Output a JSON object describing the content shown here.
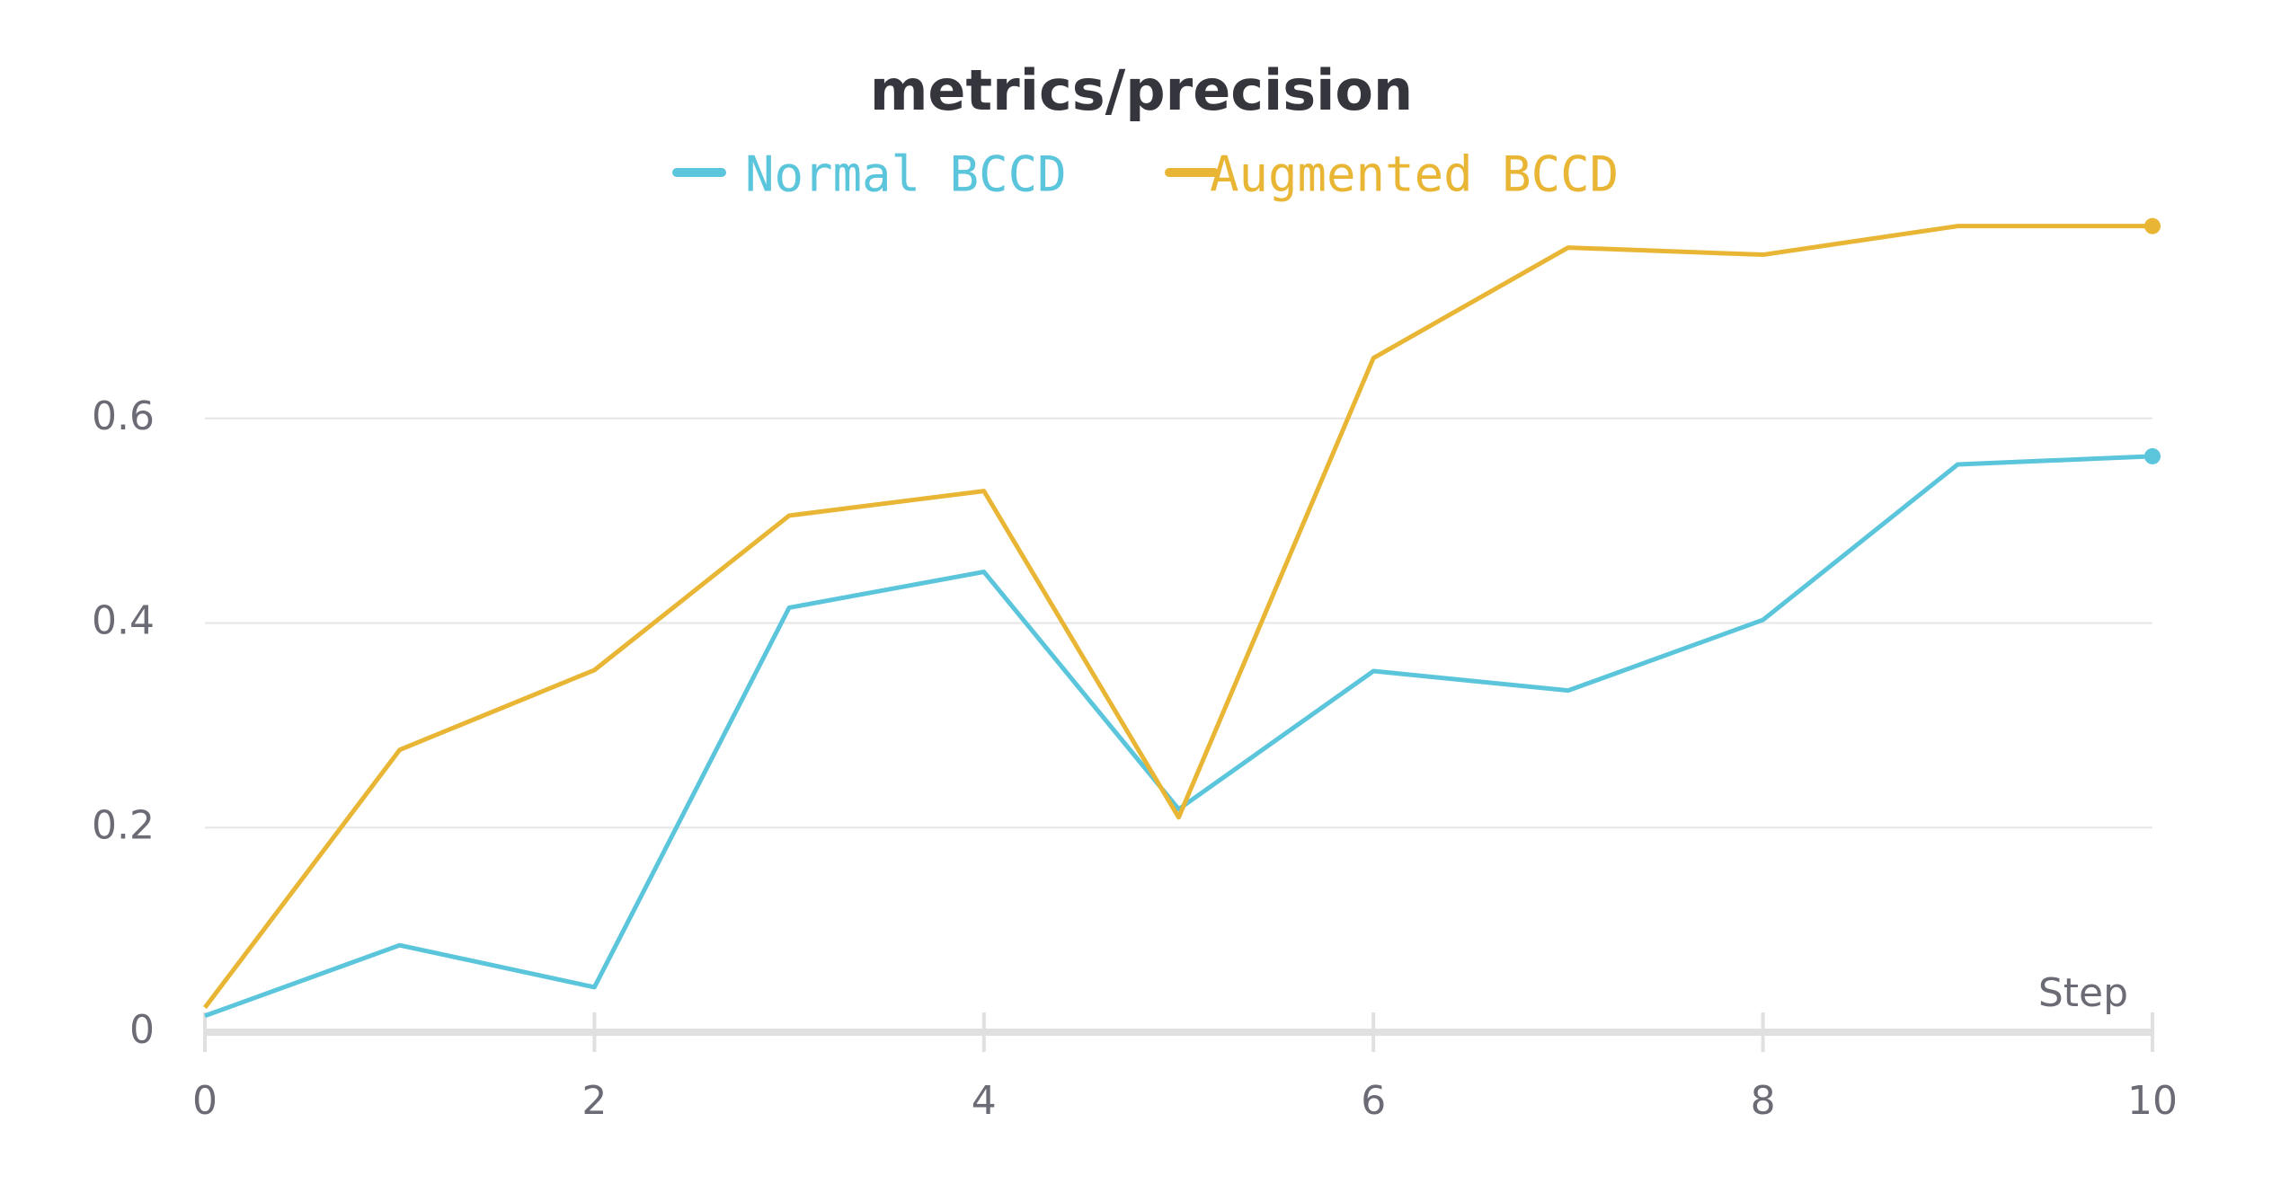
{
  "chart_data": {
    "type": "line",
    "title": "metrics/precision",
    "x_label": "Step",
    "x": [
      0,
      1,
      2,
      3,
      4,
      5,
      6,
      7,
      8,
      9,
      10
    ],
    "series": [
      {
        "name": "Normal BCCD",
        "color": "#5bc5db",
        "values": [
          0.016,
          0.085,
          0.044,
          0.415,
          0.45,
          0.218,
          0.353,
          0.334,
          0.403,
          0.555,
          0.563
        ]
      },
      {
        "name": "Augmented BCCD",
        "color": "#e8b634",
        "values": [
          0.024,
          0.276,
          0.354,
          0.505,
          0.529,
          0.21,
          0.659,
          0.767,
          0.76,
          0.788,
          0.788
        ]
      }
    ],
    "xlim": [
      0,
      10
    ],
    "xticks": [
      0,
      2,
      4,
      6,
      8,
      10
    ],
    "ylim": [
      0,
      0.8
    ],
    "yticks": [
      0,
      0.2,
      0.4,
      0.6
    ],
    "grid": true
  }
}
